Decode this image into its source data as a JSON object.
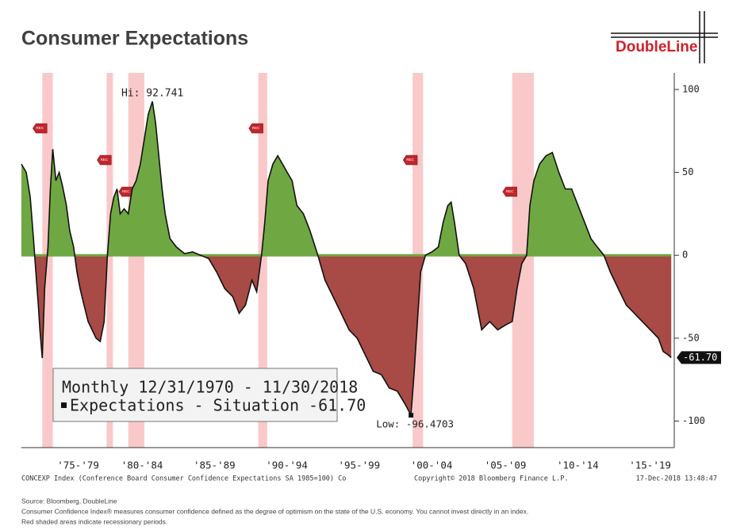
{
  "chart_data": {
    "type": "area",
    "title": "Consumer Expectations",
    "brand": "DoubleLine",
    "xlim": [
      1973.0,
      2019.0
    ],
    "ylim": [
      -116,
      110
    ],
    "yticks": [
      100,
      50,
      0,
      -50,
      -100
    ],
    "xticks": [
      {
        "value": 1977.0,
        "label": "'75-'79"
      },
      {
        "value": 1981.5,
        "label": "'80-'84"
      },
      {
        "value": 1986.6,
        "label": "'85-'89"
      },
      {
        "value": 1991.7,
        "label": "'90-'94"
      },
      {
        "value": 1996.8,
        "label": "'95-'99"
      },
      {
        "value": 2001.9,
        "label": "'00-'04"
      },
      {
        "value": 2007.1,
        "label": "'05-'09"
      },
      {
        "value": 2012.2,
        "label": "'10-'14"
      },
      {
        "value": 2017.3,
        "label": "'15-'19"
      }
    ],
    "recession_label": "REC",
    "recessions": [
      [
        1974.47,
        1975.21
      ],
      [
        1979.0,
        1979.45
      ],
      [
        1980.53,
        1981.66
      ],
      [
        1989.69,
        1990.32
      ],
      [
        2000.56,
        2001.3
      ],
      [
        2007.58,
        2009.11
      ]
    ],
    "series": [
      {
        "name": "Expectations - Situation",
        "color": "#111111",
        "positive_color": "#6fa843",
        "negative_color": "#a84a45",
        "x": [
          1973.0,
          1973.34,
          1973.62,
          1973.85,
          1974.02,
          1974.19,
          1974.3,
          1974.47,
          1974.64,
          1974.87,
          1975.04,
          1975.21,
          1975.43,
          1975.66,
          1975.89,
          1976.17,
          1976.4,
          1976.68,
          1976.91,
          1977.13,
          1977.41,
          1977.7,
          1977.98,
          1978.26,
          1978.55,
          1978.83,
          1979.06,
          1979.28,
          1979.51,
          1979.74,
          1979.96,
          1980.24,
          1980.53,
          1980.81,
          1981.09,
          1981.38,
          1981.66,
          1981.94,
          1982.23,
          1982.45,
          1982.68,
          1982.91,
          1983.13,
          1983.47,
          1983.92,
          1984.49,
          1985.06,
          1985.62,
          1986.19,
          1986.75,
          1987.32,
          1987.89,
          1988.34,
          1988.79,
          1989.24,
          1989.58,
          1989.92,
          1990.15,
          1990.38,
          1990.72,
          1991.06,
          1991.4,
          1991.73,
          1992.07,
          1992.41,
          1992.87,
          1993.32,
          1993.89,
          1994.39,
          1994.96,
          1995.53,
          1996.09,
          1996.66,
          1997.22,
          1997.79,
          1998.36,
          1998.92,
          1999.49,
          2000.05,
          2000.45,
          2000.68,
          2000.9,
          2001.13,
          2001.47,
          2001.92,
          2002.38,
          2002.72,
          2003.05,
          2003.28,
          2003.51,
          2003.85,
          2004.3,
          2004.87,
          2005.43,
          2006.0,
          2006.56,
          2007.13,
          2007.58,
          2007.92,
          2008.26,
          2008.6,
          2008.83,
          2009.11,
          2009.51,
          2009.96,
          2010.41,
          2010.87,
          2011.32,
          2011.77,
          2012.22,
          2012.68,
          2013.13,
          2013.58,
          2014.04,
          2014.49,
          2015.05,
          2015.62,
          2016.19,
          2016.75,
          2017.32,
          2017.88,
          2018.22,
          2018.56,
          2018.79
        ],
        "values": [
          55,
          50,
          35,
          10,
          -10,
          -30,
          -45,
          -62,
          -20,
          5,
          40,
          64,
          45,
          50,
          42,
          30,
          15,
          5,
          -10,
          -20,
          -30,
          -40,
          -45,
          -50,
          -52,
          -40,
          0,
          25,
          35,
          40,
          25,
          28,
          25,
          40,
          45,
          55,
          70,
          85,
          92.741,
          80,
          60,
          40,
          25,
          10,
          5,
          1,
          2,
          0,
          -2,
          -10,
          -20,
          -25,
          -35,
          -30,
          -15,
          -22,
          0,
          20,
          45,
          55,
          60,
          55,
          50,
          45,
          30,
          25,
          15,
          0,
          -15,
          -25,
          -35,
          -45,
          -50,
          -60,
          -70,
          -72,
          -80,
          -82,
          -90,
          -96.4703,
          -70,
          -40,
          -10,
          0,
          2,
          5,
          20,
          30,
          32,
          20,
          0,
          -5,
          -20,
          -45,
          -40,
          -45,
          -42,
          -40,
          -20,
          -5,
          0,
          30,
          45,
          55,
          60,
          62,
          50,
          40,
          40,
          30,
          20,
          10,
          5,
          0,
          -10,
          -20,
          -30,
          -35,
          -40,
          -45,
          -50,
          -58,
          -60,
          -61.7
        ]
      }
    ],
    "high": {
      "x": 1982.23,
      "value": 92.741,
      "label": "Hi: 92.741"
    },
    "low": {
      "x": 2000.45,
      "value": -96.4703,
      "label": "Low: -96.4703"
    },
    "last_value": {
      "value": -61.7,
      "label": "-61.70"
    },
    "legend_lines": [
      "Monthly 12/31/1970 - 11/30/2018",
      "Expectations - Situation -61.70"
    ],
    "footer_left": "CONCEXP Index (Conference Board Consumer Confidence Expectations SA 1985=100) Co",
    "footer_mid": "Copyright© 2018 Bloomberg Finance L.P.",
    "footer_right": "17-Dec-2018 13:48:47",
    "notes": [
      "Source: Bloomberg, DoubleLine",
      "Consumer Confidence Index® measures consumer confidence defined as the degree of optimism on the state of the U.S. economy. You cannot invest directly in an index.",
      "Red shaded areas indicate recessionary periods."
    ]
  }
}
